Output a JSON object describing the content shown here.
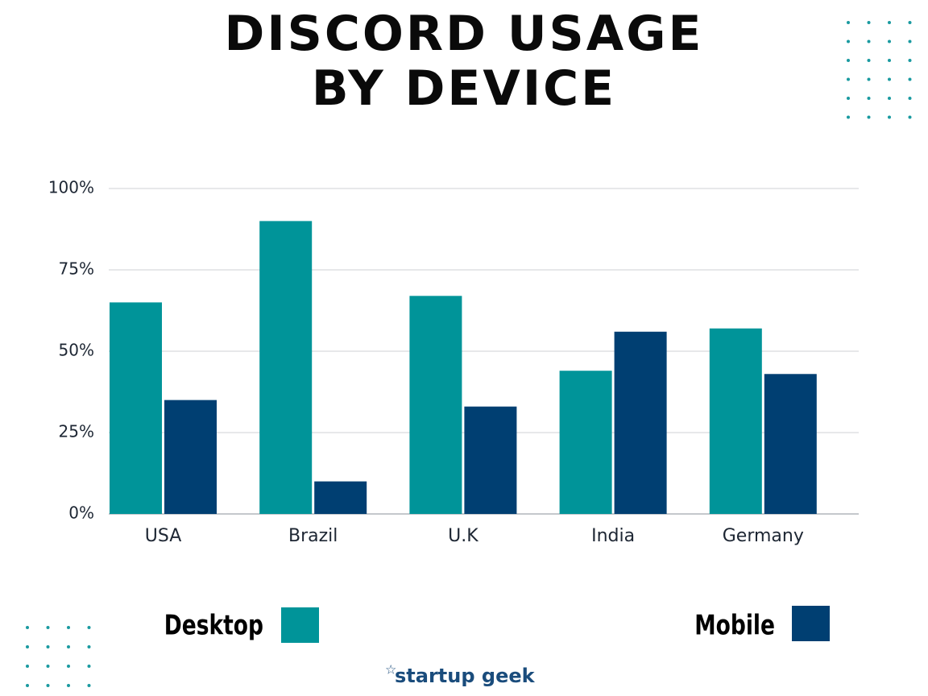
{
  "chart_data": {
    "type": "bar",
    "title": "DISCORD USAGE BY DEVICE",
    "categories": [
      "USA",
      "Brazil",
      "U.K",
      "India",
      "Germany"
    ],
    "series": [
      {
        "name": "Desktop",
        "color": "#009499",
        "values": [
          65,
          90,
          67,
          44,
          57
        ]
      },
      {
        "name": "Mobile",
        "color": "#003f72",
        "values": [
          35,
          10,
          33,
          56,
          43
        ]
      }
    ],
    "ylim": [
      0,
      100
    ],
    "yticks": [
      {
        "value": 0,
        "label": "0%"
      },
      {
        "value": 25,
        "label": "25%"
      },
      {
        "value": 50,
        "label": "50%"
      },
      {
        "value": 75,
        "label": "75%"
      },
      {
        "value": 100,
        "label": "100%"
      }
    ],
    "grid": true,
    "credit": "startup geek"
  }
}
